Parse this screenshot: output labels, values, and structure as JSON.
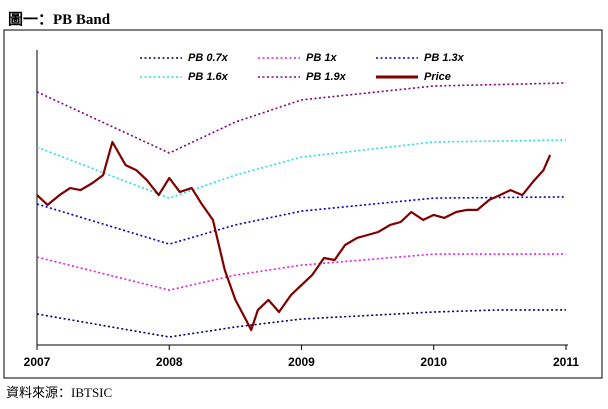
{
  "chart_data": {
    "type": "line",
    "title": "圖一：PB Band",
    "source": "資料來源：IBTSIC",
    "xlim": [
      2007,
      2011
    ],
    "xticks": [
      2007,
      2008,
      2009,
      2010,
      2011
    ],
    "ylim": [
      0,
      100
    ],
    "series": [
      {
        "name": "PB 0.7x",
        "color": "#000066",
        "style": "dotted",
        "x": [
          2007,
          2008,
          2008.5,
          2009,
          2010,
          2010.5,
          2011
        ],
        "values": [
          10.5,
          2.7,
          6.1,
          8.8,
          11.2,
          11.9,
          11.9
        ]
      },
      {
        "name": "PB 1x",
        "color": "#e020e0",
        "style": "dotted",
        "x": [
          2007,
          2008,
          2008.5,
          2009,
          2010,
          2011
        ],
        "values": [
          29.8,
          18.6,
          23.7,
          27.1,
          30.8,
          30.8
        ]
      },
      {
        "name": "PB 1.3x",
        "color": "#0000cc",
        "style": "dotted",
        "x": [
          2007,
          2008,
          2008.5,
          2009,
          2010,
          2011
        ],
        "values": [
          47.8,
          34.2,
          40.7,
          45.4,
          49.8,
          50.2
        ]
      },
      {
        "name": "PB 1.6x",
        "color": "#20e0e0",
        "style": "dotted",
        "x": [
          2007,
          2008,
          2008.5,
          2009,
          2010,
          2011
        ],
        "values": [
          67.1,
          49.8,
          57.6,
          63.7,
          68.8,
          69.5
        ]
      },
      {
        "name": "PB 1.9x",
        "color": "#800080",
        "style": "dotted",
        "x": [
          2007,
          2008,
          2008.5,
          2009,
          2010,
          2011
        ],
        "values": [
          85.8,
          65.1,
          75.6,
          83.1,
          87.8,
          88.8
        ]
      },
      {
        "name": "Price",
        "color": "#800000",
        "style": "solid",
        "x": [
          2007,
          2007.08,
          2007.17,
          2007.25,
          2007.33,
          2007.42,
          2007.5,
          2007.57,
          2007.67,
          2007.75,
          2007.83,
          2007.92,
          2008,
          2008.08,
          2008.17,
          2008.25,
          2008.33,
          2008.42,
          2008.5,
          2008.58,
          2008.62,
          2008.67,
          2008.75,
          2008.83,
          2008.92,
          2009,
          2009.08,
          2009.17,
          2009.25,
          2009.33,
          2009.42,
          2009.5,
          2009.58,
          2009.67,
          2009.75,
          2009.83,
          2009.92,
          2010,
          2010.08,
          2010.17,
          2010.25,
          2010.33,
          2010.42,
          2010.5,
          2010.58,
          2010.67,
          2010.75,
          2010.83,
          2010.88
        ],
        "values": [
          50.8,
          47.5,
          50.8,
          53.2,
          52.5,
          54.9,
          57.6,
          68.8,
          61.0,
          59.3,
          55.9,
          50.8,
          56.6,
          51.9,
          53.2,
          47.5,
          42.4,
          25.4,
          15.3,
          8.5,
          5.1,
          11.9,
          15.3,
          11.2,
          16.9,
          20.3,
          23.7,
          29.5,
          28.8,
          33.9,
          36.3,
          37.3,
          38.3,
          40.7,
          41.7,
          45.1,
          42.4,
          44.1,
          43.1,
          45.1,
          45.8,
          45.8,
          49.2,
          50.8,
          52.5,
          50.8,
          55.3,
          59.3,
          64.4
        ]
      }
    ]
  }
}
